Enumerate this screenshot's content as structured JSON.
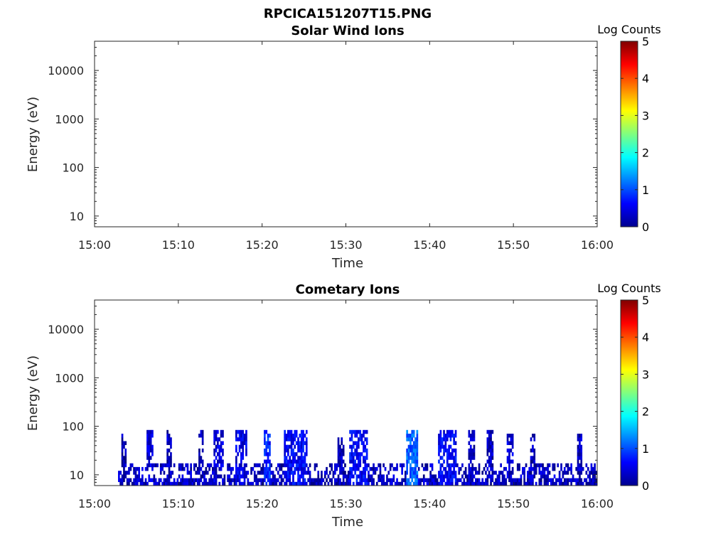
{
  "figure_title": "RPCICA151207T15.PNG",
  "chart_data": [
    {
      "type": "heatmap",
      "title": "Solar Wind Ions",
      "xlabel": "Time",
      "ylabel": "Energy (eV)",
      "x_ticks": [
        "15:00",
        "15:10",
        "15:20",
        "15:30",
        "15:40",
        "15:50",
        "16:00"
      ],
      "x_range": [
        "15:00",
        "16:00"
      ],
      "y_scale": "log",
      "y_ticks": [
        10,
        100,
        1000,
        10000
      ],
      "y_tick_labels": [
        "10",
        "100",
        "1000",
        "10000"
      ],
      "y_range": [
        6,
        40000
      ],
      "colorbar": {
        "label": "Log Counts",
        "range": [
          0,
          5
        ],
        "ticks": [
          "0",
          "1",
          "2",
          "3",
          "4",
          "5"
        ],
        "colormap": "jet"
      },
      "data_present": false,
      "columns": []
    },
    {
      "type": "heatmap",
      "title": "Cometary Ions",
      "xlabel": "Time",
      "ylabel": "Energy (eV)",
      "x_ticks": [
        "15:00",
        "15:10",
        "15:20",
        "15:30",
        "15:40",
        "15:50",
        "16:00"
      ],
      "x_range": [
        "15:00",
        "16:00"
      ],
      "y_scale": "log",
      "y_ticks": [
        10,
        100,
        1000,
        10000
      ],
      "y_tick_labels": [
        "10",
        "100",
        "1000",
        "10000"
      ],
      "y_range": [
        6,
        40000
      ],
      "colorbar": {
        "label": "Log Counts",
        "range": [
          0,
          5
        ],
        "ticks": [
          "0",
          "1",
          "2",
          "3",
          "4",
          "5"
        ],
        "colormap": "jet"
      },
      "data_present": true,
      "data_start_min": 2.8,
      "data_end_min": 60,
      "energy_floor_ev": 6,
      "typical_top_energy_ev": 15,
      "typical_log_counts": 0.3,
      "bursts": [
        {
          "start_min": 3.2,
          "end_min": 3.8,
          "top_energy_ev": 70,
          "log_counts": 0.2
        },
        {
          "start_min": 6.2,
          "end_min": 7.0,
          "top_energy_ev": 80,
          "log_counts": 0.4
        },
        {
          "start_min": 8.6,
          "end_min": 9.2,
          "top_energy_ev": 75,
          "log_counts": 0.3
        },
        {
          "start_min": 12.2,
          "end_min": 12.8,
          "top_energy_ev": 75,
          "log_counts": 0.3
        },
        {
          "start_min": 14.0,
          "end_min": 15.3,
          "top_energy_ev": 75,
          "log_counts": 0.4
        },
        {
          "start_min": 16.6,
          "end_min": 18.0,
          "top_energy_ev": 80,
          "log_counts": 0.5
        },
        {
          "start_min": 20.0,
          "end_min": 20.8,
          "top_energy_ev": 80,
          "log_counts": 0.8
        },
        {
          "start_min": 22.5,
          "end_min": 25.2,
          "top_energy_ev": 80,
          "log_counts": 0.6
        },
        {
          "start_min": 28.8,
          "end_min": 29.6,
          "top_energy_ev": 50,
          "log_counts": 0.3
        },
        {
          "start_min": 30.2,
          "end_min": 32.5,
          "top_energy_ev": 80,
          "log_counts": 0.6
        },
        {
          "start_min": 37.0,
          "end_min": 38.5,
          "top_energy_ev": 80,
          "log_counts": 1.1
        },
        {
          "start_min": 41.0,
          "end_min": 43.2,
          "top_energy_ev": 80,
          "log_counts": 0.6
        },
        {
          "start_min": 44.5,
          "end_min": 45.3,
          "top_energy_ev": 80,
          "log_counts": 0.3
        },
        {
          "start_min": 46.8,
          "end_min": 47.5,
          "top_energy_ev": 75,
          "log_counts": 0.3
        },
        {
          "start_min": 49.2,
          "end_min": 50.0,
          "top_energy_ev": 70,
          "log_counts": 0.4
        },
        {
          "start_min": 52.0,
          "end_min": 52.6,
          "top_energy_ev": 60,
          "log_counts": 0.3
        },
        {
          "start_min": 57.6,
          "end_min": 58.2,
          "top_energy_ev": 70,
          "log_counts": 0.3
        }
      ]
    }
  ]
}
